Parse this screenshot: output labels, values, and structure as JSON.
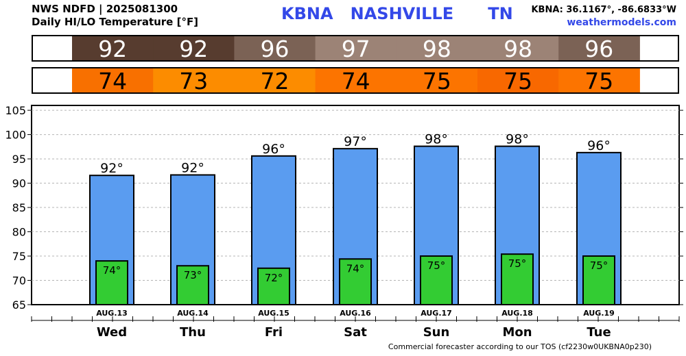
{
  "header": {
    "source": "NWS NDFD | 2025081300",
    "subtitle": "Daily HI/LO Temperature [°F]",
    "station": "KBNA   NASHVILLE      TN",
    "coords": "KBNA: 36.1167°, -86.6833°W",
    "website": "weathermodels.com"
  },
  "footer": "Commercial forecaster according to our TOS (cf2230w0UKBNA0p230)",
  "colors": {
    "hi_bar": "#5a9cf0",
    "lo_bar": "#33cc33",
    "hi_strip": [
      "#573c2f",
      "#573c2f",
      "#7b6255",
      "#9c8376",
      "#9c8376",
      "#9c8376",
      "#7b6255"
    ],
    "lo_strip": [
      "#f87000",
      "#fc8c00",
      "#fc8c00",
      "#fc7400",
      "#fc7400",
      "#f86800",
      "#fc7400"
    ]
  },
  "chart_data": {
    "type": "bar",
    "categories": [
      "Wed",
      "Thu",
      "Fri",
      "Sat",
      "Sun",
      "Mon",
      "Tue"
    ],
    "dates": [
      "AUG.13",
      "AUG.14",
      "AUG.15",
      "AUG.16",
      "AUG.17",
      "AUG.18",
      "AUG.19"
    ],
    "series": [
      {
        "values": [
          91.6,
          91.7,
          95.6,
          97.1,
          97.6,
          97.6,
          96.3
        ],
        "labels": [
          "92°",
          "92°",
          "96°",
          "97°",
          "98°",
          "98°",
          "96°"
        ]
      },
      {
        "values": [
          74.0,
          73.0,
          72.5,
          74.4,
          75.0,
          75.4,
          75.0
        ],
        "labels": [
          "74°",
          "73°",
          "72°",
          "74°",
          "75°",
          "75°",
          "75°"
        ]
      }
    ],
    "strip_hi": [
      "92",
      "92",
      "96",
      "97",
      "98",
      "98",
      "96"
    ],
    "strip_lo": [
      "74",
      "73",
      "72",
      "74",
      "75",
      "75",
      "75"
    ],
    "ylim": [
      65,
      106
    ],
    "yticks": [
      "105",
      "100",
      "95",
      "90",
      "85",
      "80",
      "75",
      "70",
      "65"
    ],
    "grid": true
  }
}
